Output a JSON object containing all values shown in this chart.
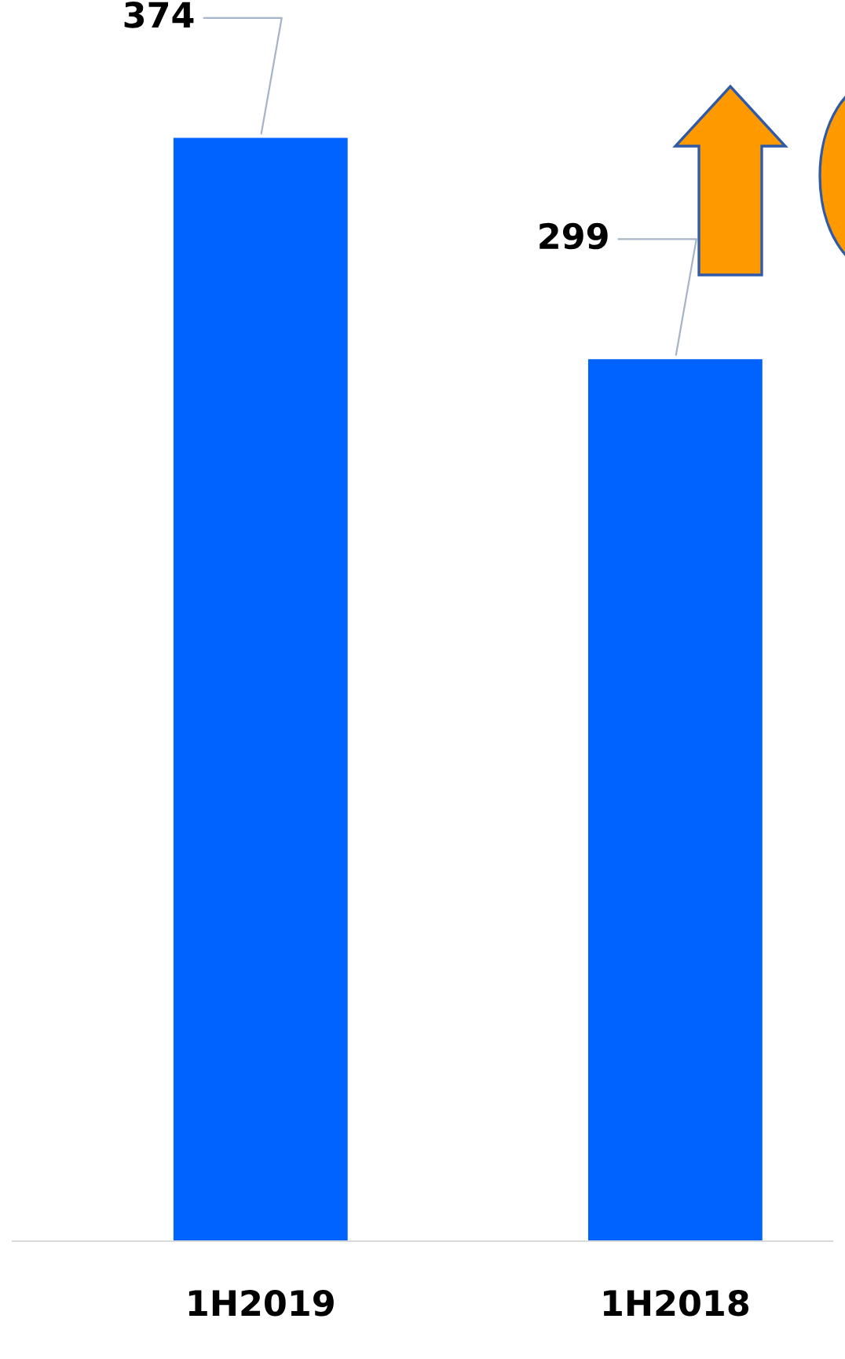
{
  "chart_data": {
    "type": "bar",
    "categories": [
      "1H2019",
      "1H2018"
    ],
    "values": [
      374,
      299
    ],
    "color": "#0062ff",
    "data_labels": true,
    "grid": false,
    "legend": false
  }
}
